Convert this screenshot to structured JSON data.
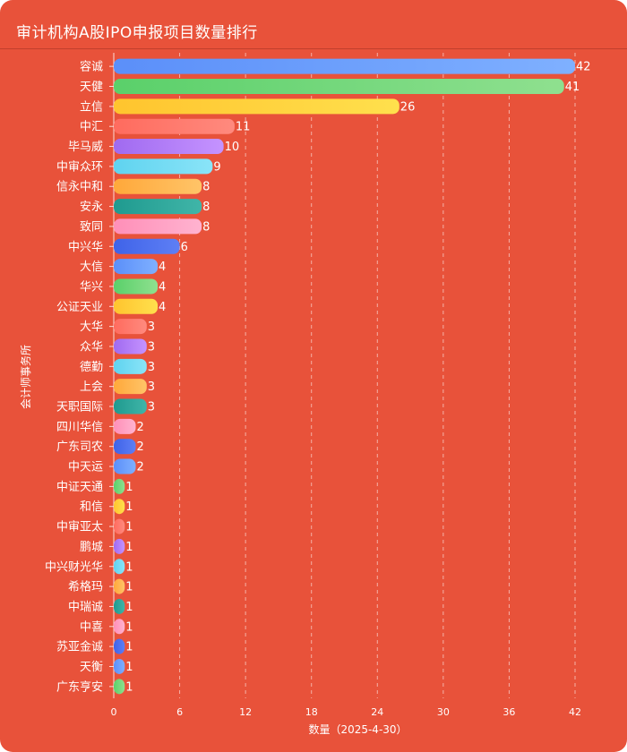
{
  "header": {
    "title": "审计机构A股IPO申报项目数量排行"
  },
  "chart_data": {
    "type": "bar",
    "orientation": "horizontal",
    "title": "审计机构A股IPO申报项目数量排行",
    "xlabel": "数量（2025-4-30）",
    "ylabel": "会计师事务所",
    "xlim": [
      0,
      42
    ],
    "xticks": [
      0,
      6,
      12,
      18,
      24,
      30,
      36,
      42
    ],
    "grid": "vertical-dashed",
    "categories": [
      "容诚",
      "天健",
      "立信",
      "中汇",
      "毕马威",
      "中审众环",
      "信永中和",
      "安永",
      "致同",
      "中兴华",
      "大信",
      "华兴",
      "公证天业",
      "大华",
      "众华",
      "德勤",
      "上会",
      "天职国际",
      "四川华信",
      "广东司农",
      "中天运",
      "中证天通",
      "和信",
      "中审亚太",
      "鹏城",
      "中兴财光华",
      "希格玛",
      "中瑞诚",
      "中喜",
      "苏亚金诚",
      "天衡",
      "广东亨安"
    ],
    "values": [
      42,
      41,
      26,
      11,
      10,
      9,
      8,
      8,
      8,
      6,
      4,
      4,
      4,
      3,
      3,
      3,
      3,
      3,
      2,
      2,
      2,
      1,
      1,
      1,
      1,
      1,
      1,
      1,
      1,
      1,
      1,
      1
    ],
    "palette": [
      [
        "#5b8ff9",
        "#7fb0ff"
      ],
      [
        "#5ad06a",
        "#8fe08f"
      ],
      [
        "#ffc42e",
        "#ffe04d"
      ],
      [
        "#ff6b5e",
        "#ff8a7e"
      ],
      [
        "#a06af0",
        "#c593ff"
      ],
      [
        "#5fd3ef",
        "#8ae4f8"
      ],
      [
        "#ffa83a",
        "#ffc468"
      ],
      [
        "#1f9a8f",
        "#40b5a8"
      ],
      [
        "#ff8fb8",
        "#ffb3d0"
      ],
      [
        "#3f63e8",
        "#5e7ff5"
      ]
    ]
  }
}
